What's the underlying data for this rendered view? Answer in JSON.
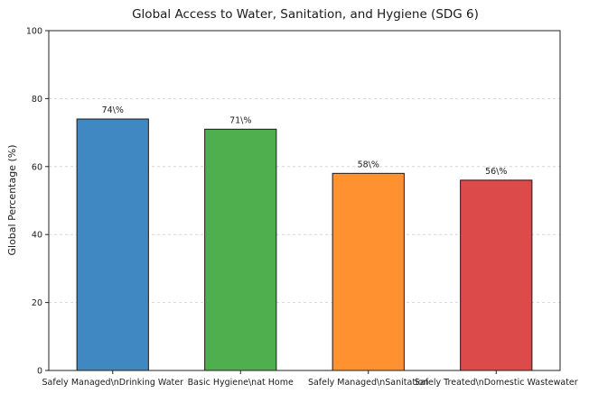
{
  "chart_data": {
    "type": "bar",
    "title": "Global Access to Water, Sanitation, and Hygiene (SDG 6)",
    "xlabel": "",
    "ylabel": "Global Percentage (%)",
    "ylim": [
      0,
      100
    ],
    "yticks": [
      "0",
      "20",
      "40",
      "60",
      "80",
      "100"
    ],
    "categories": [
      "Safely Managed\\nDrinking Water",
      "Basic Hygiene\\nat Home",
      "Safely Managed\\nSanitation",
      "Safely Treated\\nDomestic Wastewater"
    ],
    "values": [
      74,
      71,
      58,
      56
    ],
    "data_labels": [
      "74\\%",
      "71\\%",
      "58\\%",
      "56\\%"
    ],
    "colors": [
      "#3f88c2",
      "#4faf4f",
      "#ff9130",
      "#dd4a4a"
    ],
    "grid": true,
    "legend": "none"
  }
}
